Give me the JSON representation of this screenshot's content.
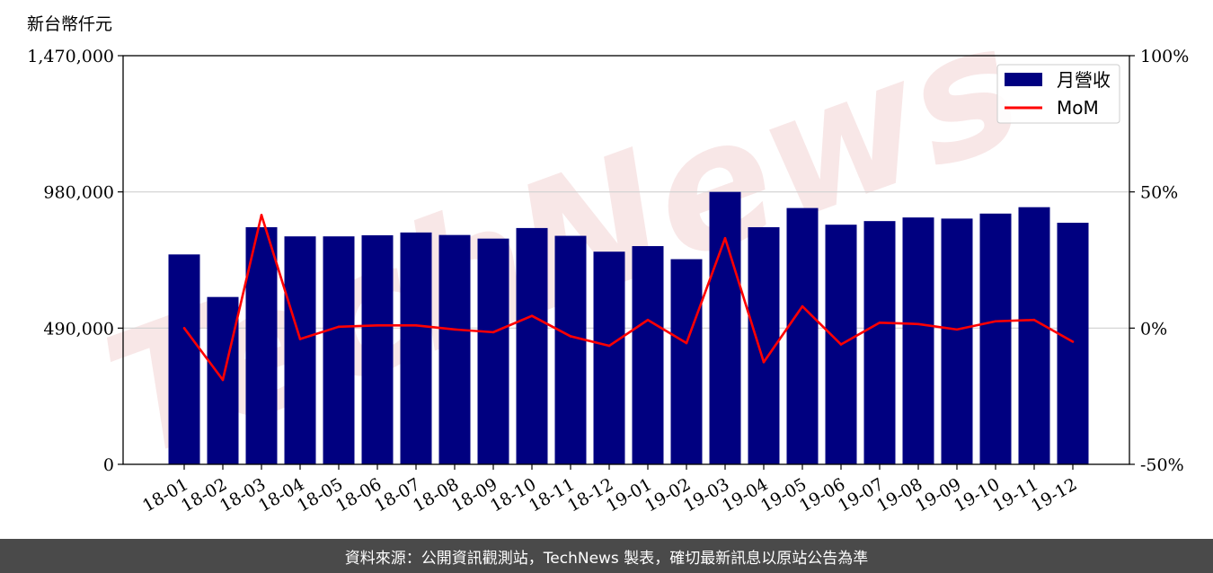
{
  "chart_data": {
    "type": "bar+line",
    "y_left_unit": "新台幣仟元",
    "categories": [
      "18-01",
      "18-02",
      "18-03",
      "18-04",
      "18-05",
      "18-06",
      "18-07",
      "18-08",
      "18-09",
      "18-10",
      "18-11",
      "18-12",
      "19-01",
      "19-02",
      "19-03",
      "19-04",
      "19-05",
      "19-06",
      "19-07",
      "19-08",
      "19-09",
      "19-10",
      "19-11",
      "19-12"
    ],
    "series": [
      {
        "name": "月營收",
        "type": "bar",
        "axis": "left",
        "color": "#000080",
        "values": [
          755000,
          602000,
          853000,
          820000,
          820000,
          824000,
          834000,
          825000,
          812000,
          850000,
          822000,
          765000,
          785000,
          738000,
          980000,
          853000,
          922000,
          862000,
          875000,
          888000,
          884000,
          902000,
          925000,
          869000
        ]
      },
      {
        "name": "MoM",
        "type": "line",
        "axis": "right",
        "color": "#ff0000",
        "values": [
          0,
          -19,
          41.5,
          -4,
          0.5,
          1,
          1,
          -0.5,
          -1.5,
          4.5,
          -3,
          -6.5,
          3,
          -5.5,
          33,
          -12.5,
          8,
          -6,
          2,
          1.5,
          -0.5,
          2.5,
          3,
          -5
        ]
      }
    ],
    "y_left": {
      "min": 0,
      "max": 1470000,
      "ticks": [
        "0",
        "490,000",
        "980,000",
        "1,470,000"
      ]
    },
    "y_right": {
      "min": -50,
      "max": 100,
      "ticks": [
        "-50%",
        "0%",
        "50%",
        "100%"
      ]
    },
    "grid": "horizontal",
    "legend_position": "top-right"
  },
  "watermark": "TechNews",
  "footer": "資料來源：公開資訊觀測站，TechNews 製表，確切最新訊息以原站公告為準"
}
